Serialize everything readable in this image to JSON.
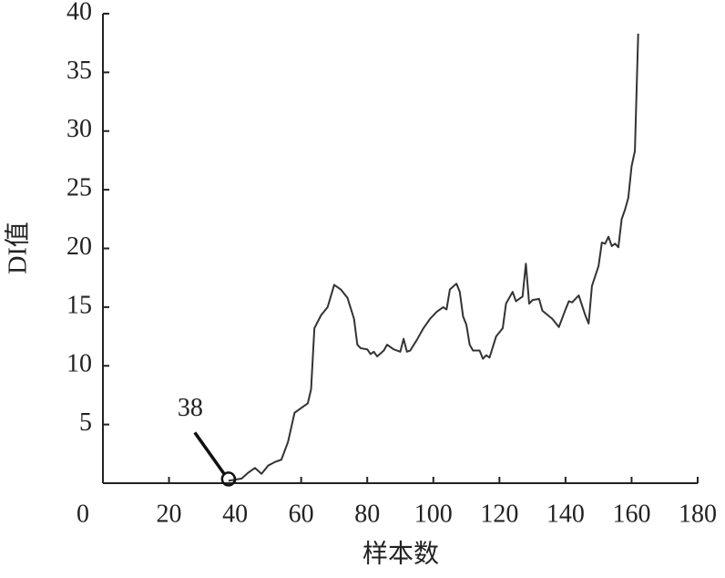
{
  "chart_data": {
    "type": "line",
    "xlabel": "样本数",
    "ylabel": "DI值",
    "annotation": {
      "label": "38"
    },
    "xlim": [
      0,
      180
    ],
    "xticks": [
      0,
      20,
      40,
      60,
      80,
      100,
      120,
      140,
      160,
      180
    ],
    "ylim": [
      0,
      40
    ],
    "yticks": [
      5,
      10,
      15,
      20,
      25,
      30,
      35,
      40
    ],
    "series": [
      {
        "color": "#333333",
        "x": [
          38,
          40,
          42,
          44,
          46,
          48,
          50,
          52,
          54,
          56,
          58,
          60,
          62,
          63,
          64,
          66,
          68,
          70,
          72,
          74,
          76,
          77,
          78,
          80,
          81,
          82,
          83,
          85,
          86,
          88,
          90,
          91,
          92,
          93,
          95,
          97,
          99,
          101,
          103,
          104,
          105,
          107,
          108,
          109,
          110,
          111,
          112,
          114,
          115,
          116,
          117,
          119,
          121,
          122,
          124,
          125,
          126,
          127,
          128,
          129,
          130,
          132,
          133,
          136,
          138,
          140,
          141,
          142,
          144,
          146,
          147,
          148,
          150,
          151,
          152,
          153,
          154,
          155,
          156,
          157,
          158,
          159,
          160,
          161,
          162
        ],
        "values": [
          0.2,
          0.3,
          0.4,
          0.9,
          1.3,
          0.8,
          1.5,
          1.8,
          2.0,
          3.5,
          6.0,
          6.4,
          6.8,
          8.0,
          13.2,
          14.3,
          15.0,
          16.9,
          16.5,
          15.8,
          14.0,
          11.8,
          11.5,
          11.4,
          11.0,
          11.2,
          10.8,
          11.3,
          11.8,
          11.4,
          11.2,
          12.3,
          11.2,
          11.3,
          12.2,
          13.2,
          14.0,
          14.6,
          15.0,
          14.8,
          16.5,
          17.0,
          16.3,
          14.2,
          13.5,
          11.8,
          11.3,
          11.3,
          10.6,
          10.9,
          10.7,
          12.5,
          13.2,
          15.3,
          16.3,
          15.5,
          15.7,
          15.9,
          18.7,
          15.3,
          15.6,
          15.7,
          14.7,
          14.0,
          13.3,
          14.8,
          15.5,
          15.4,
          16.0,
          14.3,
          13.6,
          16.8,
          18.5,
          20.5,
          20.4,
          21.0,
          20.2,
          20.4,
          20.1,
          22.5,
          23.3,
          24.3,
          27.0,
          28.3,
          38.3
        ]
      }
    ]
  }
}
